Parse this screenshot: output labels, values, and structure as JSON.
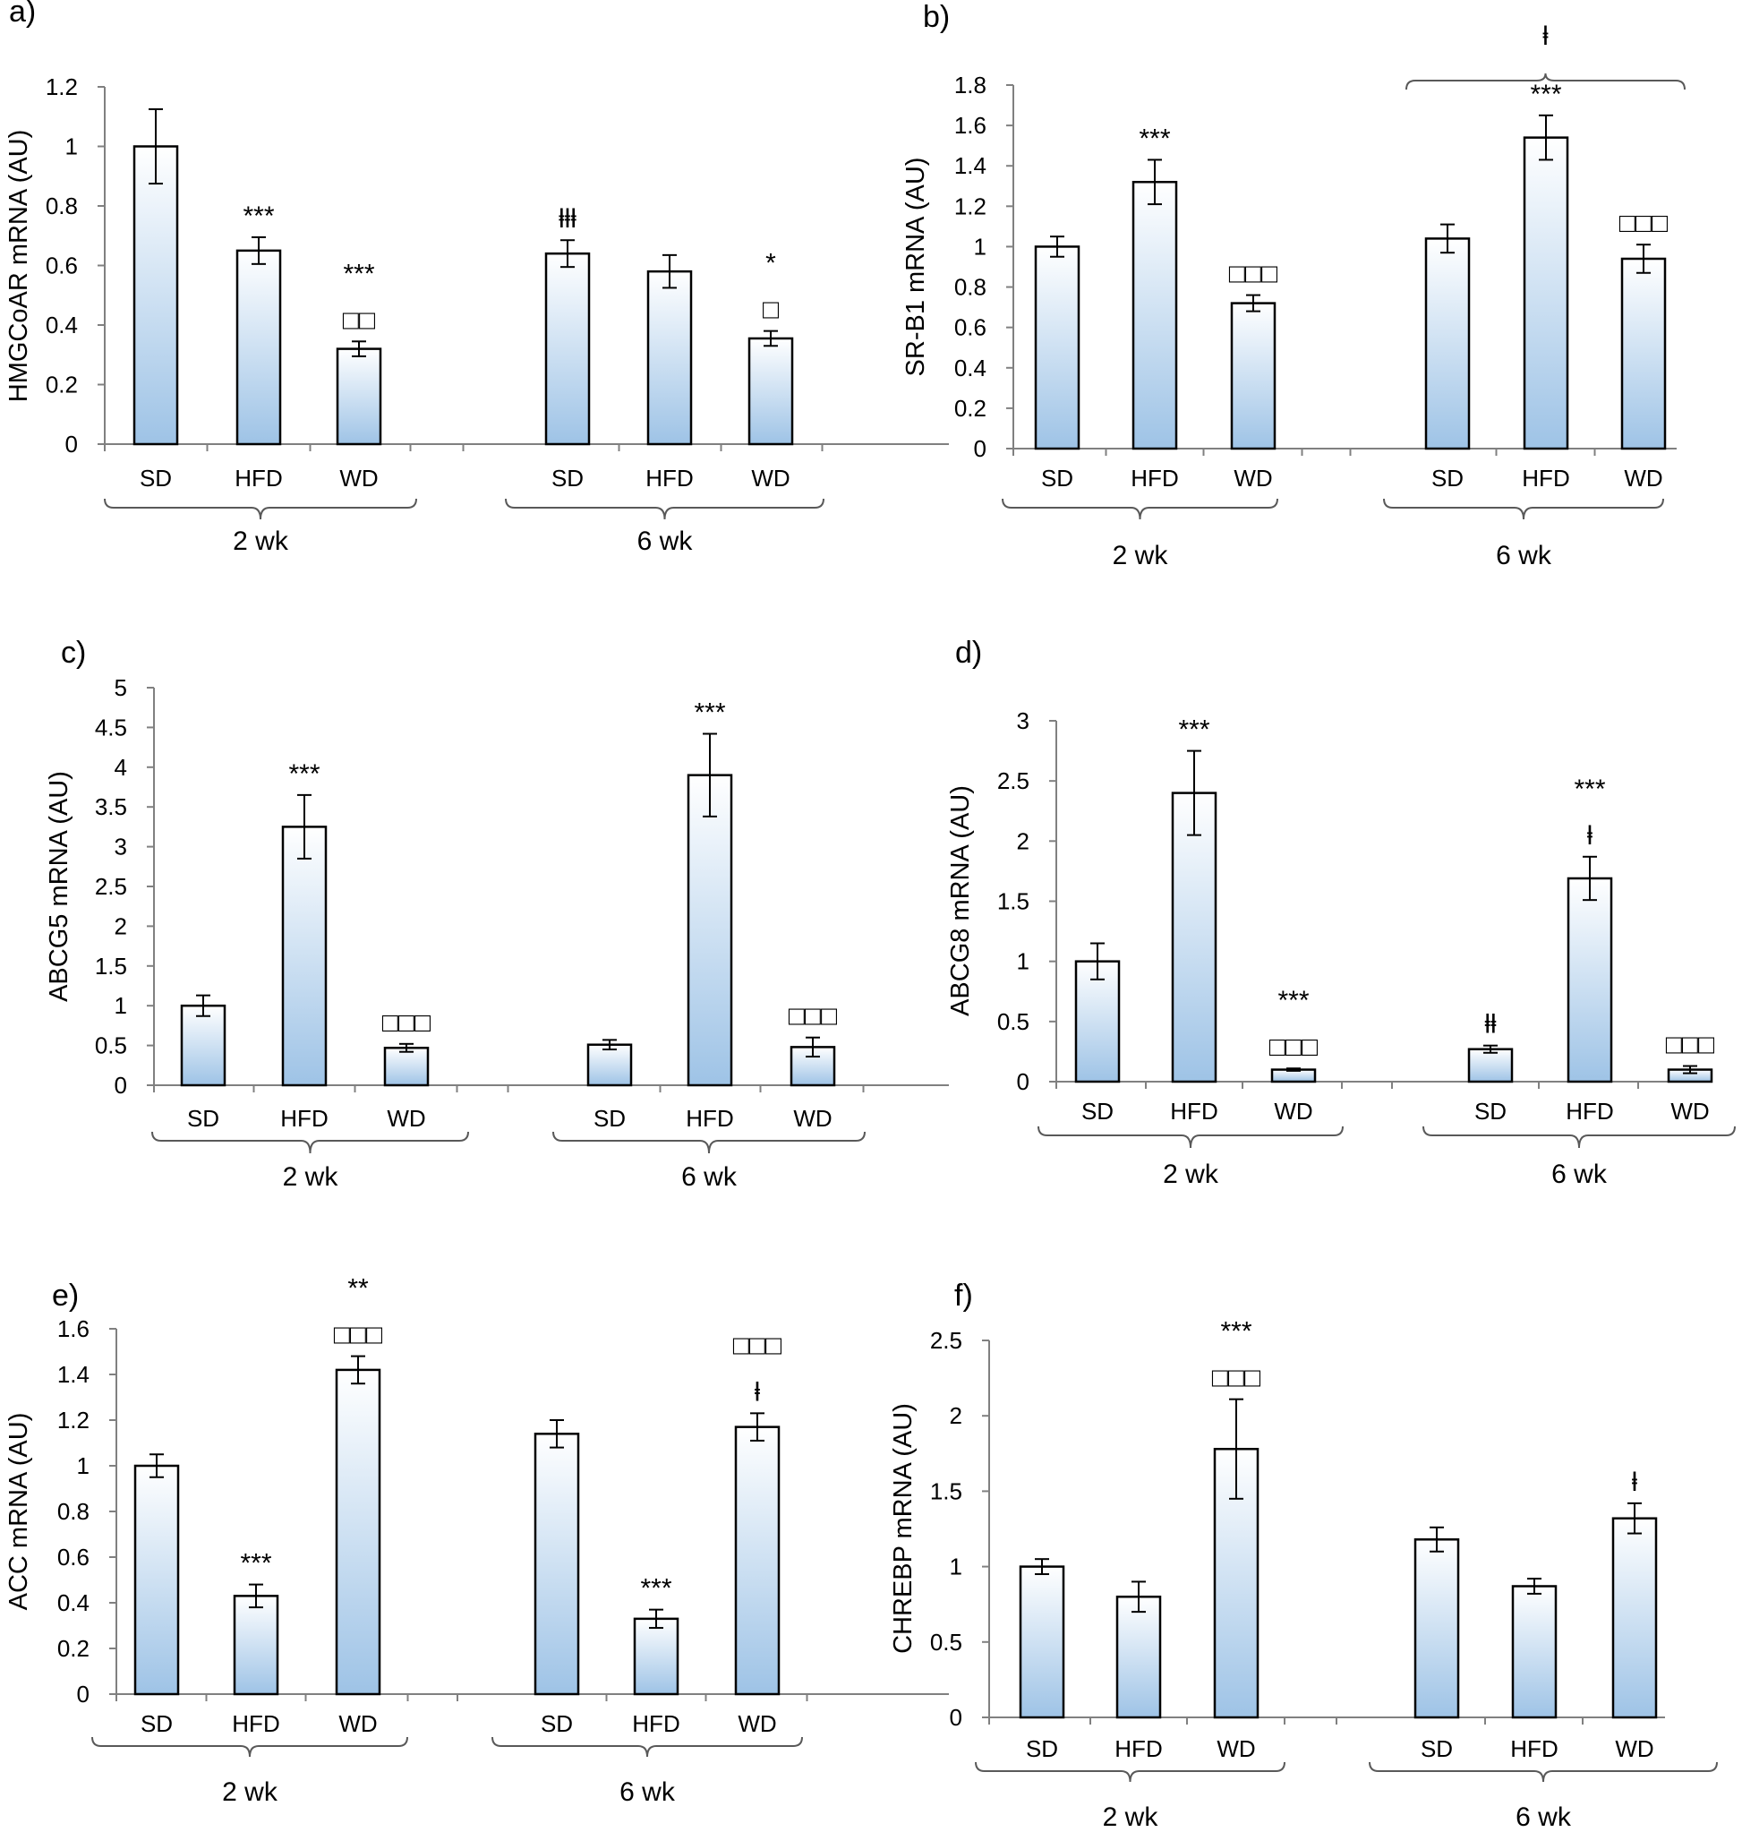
{
  "figure": {
    "caption": ""
  },
  "chart_data": [
    {
      "type": "bar",
      "panel_label": "a)",
      "ylabel": "HMGCoAR mRNA (AU)",
      "ylim": [
        0,
        1.2
      ],
      "yticks": [
        "0",
        "0.2",
        "0.4",
        "0.6",
        "0.8",
        "1",
        "1.2"
      ],
      "categories": [
        "SD",
        "HFD",
        "WD",
        "SD",
        "HFD",
        "WD"
      ],
      "groups": [
        "2 wk",
        "6 wk"
      ],
      "values": [
        1.0,
        0.65,
        0.32,
        0.64,
        0.58,
        0.355
      ],
      "errors": [
        0.125,
        0.045,
        0.025,
        0.045,
        0.055,
        0.025
      ],
      "annotations": [
        [],
        [
          "***"
        ],
        [
          "***",
          "□□"
        ],
        [
          "ⱡⱡⱡ"
        ],
        [],
        [
          "*",
          "□"
        ]
      ],
      "bracket": null
    },
    {
      "type": "bar",
      "panel_label": "b)",
      "ylabel": "SR-B1 mRNA (AU)",
      "ylim": [
        0,
        1.8
      ],
      "yticks": [
        "0",
        "0.2",
        "0.4",
        "0.6",
        "0.8",
        "1",
        "1.2",
        "1.4",
        "1.6",
        "1.8"
      ],
      "categories": [
        "SD",
        "HFD",
        "WD",
        "SD",
        "HFD",
        "WD"
      ],
      "groups": [
        "2 wk",
        "6 wk"
      ],
      "values": [
        1.0,
        1.32,
        0.72,
        1.04,
        1.54,
        0.94
      ],
      "errors": [
        0.05,
        0.11,
        0.04,
        0.07,
        0.11,
        0.07
      ],
      "annotations": [
        [],
        [
          "***"
        ],
        [
          "□□□"
        ],
        [],
        [
          "***"
        ],
        [
          "□□□"
        ]
      ],
      "bracket": {
        "symbol": "ⱡ",
        "from": 3,
        "to": 5
      }
    },
    {
      "type": "bar",
      "panel_label": "c)",
      "ylabel": "ABCG5 mRNA (AU)",
      "ylim": [
        0,
        5
      ],
      "yticks": [
        "0",
        "0.5",
        "1",
        "1.5",
        "2",
        "2.5",
        "3",
        "3.5",
        "4",
        "4.5",
        "5"
      ],
      "categories": [
        "SD",
        "HFD",
        "WD",
        "SD",
        "HFD",
        "WD"
      ],
      "groups": [
        "2 wk",
        "6 wk"
      ],
      "values": [
        1.0,
        3.25,
        0.47,
        0.51,
        3.9,
        0.48
      ],
      "errors": [
        0.13,
        0.4,
        0.05,
        0.06,
        0.52,
        0.12
      ],
      "annotations": [
        [],
        [
          "***"
        ],
        [
          "□□□"
        ],
        [],
        [
          "***"
        ],
        [
          "□□□"
        ]
      ],
      "bracket": null
    },
    {
      "type": "bar",
      "panel_label": "d)",
      "ylabel": "ABCG8 mRNA (AU)",
      "ylim": [
        0,
        3
      ],
      "yticks": [
        "0",
        "0.5",
        "1",
        "1.5",
        "2",
        "2.5",
        "3"
      ],
      "categories": [
        "SD",
        "HFD",
        "WD",
        "SD",
        "HFD",
        "WD"
      ],
      "groups": [
        "2 wk",
        "6 wk"
      ],
      "values": [
        1.0,
        2.4,
        0.1,
        0.27,
        1.69,
        0.1
      ],
      "errors": [
        0.15,
        0.35,
        0.01,
        0.03,
        0.18,
        0.03
      ],
      "annotations": [
        [],
        [
          "***"
        ],
        [
          "***",
          "□□□"
        ],
        [
          "ⱡⱡ"
        ],
        [
          "***",
          "ⱡ"
        ],
        [
          "□□□"
        ]
      ],
      "bracket": null
    },
    {
      "type": "bar",
      "panel_label": "e)",
      "ylabel": "ACC mRNA (AU)",
      "ylim": [
        0,
        1.6
      ],
      "yticks": [
        "0",
        "0.2",
        "0.4",
        "0.6",
        "0.8",
        "1",
        "1.2",
        "1.4",
        "1.6"
      ],
      "categories": [
        "SD",
        "HFD",
        "WD",
        "SD",
        "HFD",
        "WD"
      ],
      "groups": [
        "2 wk",
        "6 wk"
      ],
      "values": [
        1.0,
        0.43,
        1.42,
        1.14,
        0.33,
        1.17
      ],
      "errors": [
        0.05,
        0.05,
        0.06,
        0.06,
        0.04,
        0.06
      ],
      "annotations": [
        [],
        [
          "***"
        ],
        [
          "**",
          "□□□"
        ],
        [],
        [
          "***"
        ],
        [
          "□□□",
          "ⱡ"
        ]
      ],
      "bracket": null
    },
    {
      "type": "bar",
      "panel_label": "f)",
      "ylabel": "CHREBP mRNA (AU)",
      "ylim": [
        0,
        2.5
      ],
      "yticks": [
        "0",
        "0.5",
        "1",
        "1.5",
        "2",
        "2.5"
      ],
      "categories": [
        "SD",
        "HFD",
        "WD",
        "SD",
        "HFD",
        "WD"
      ],
      "groups": [
        "2 wk",
        "6 wk"
      ],
      "values": [
        1.0,
        0.8,
        1.78,
        1.18,
        0.87,
        1.32
      ],
      "errors": [
        0.05,
        0.1,
        0.33,
        0.08,
        0.05,
        0.1
      ],
      "annotations": [
        [],
        [],
        [
          "***",
          "□□□"
        ],
        [],
        [],
        [
          "ⱡ"
        ]
      ],
      "bracket": null
    }
  ]
}
